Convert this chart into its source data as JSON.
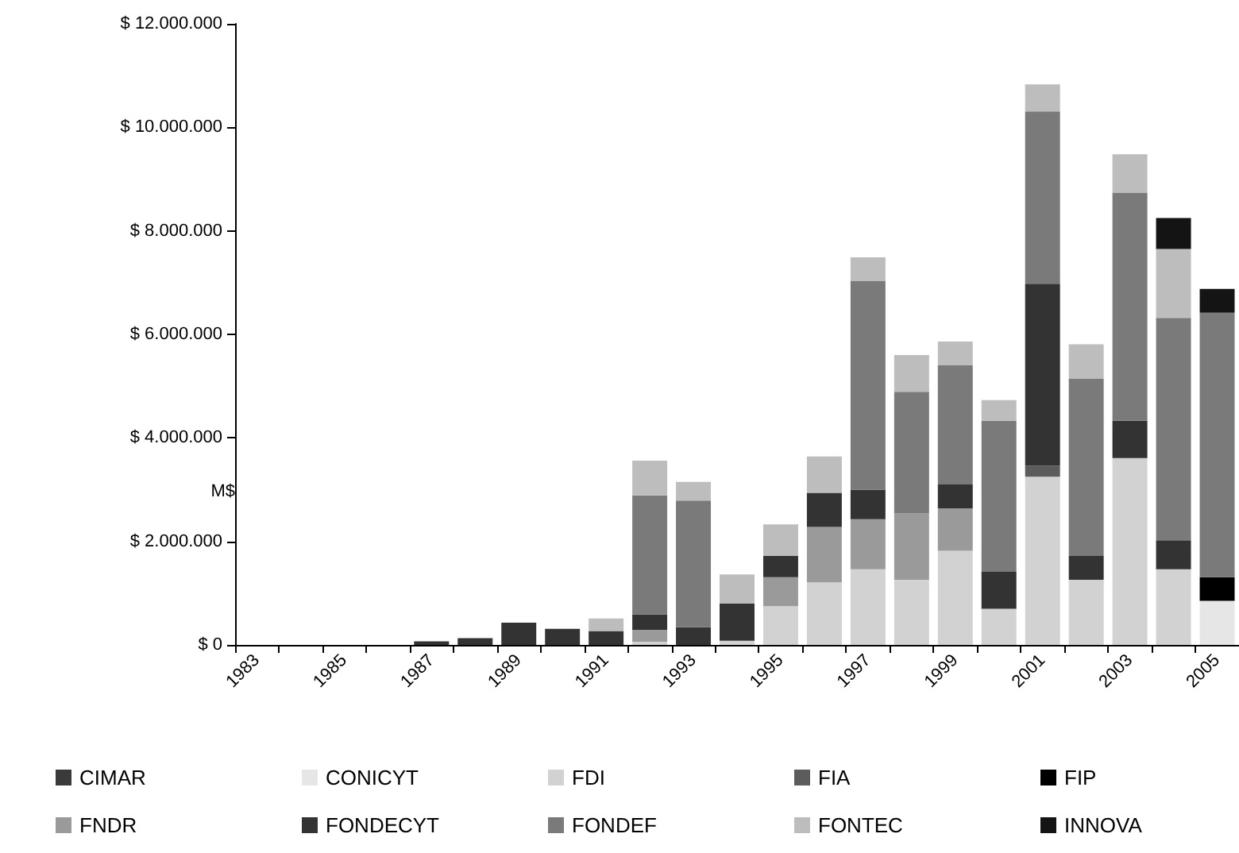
{
  "chart_data": {
    "type": "bar",
    "stacked": true,
    "ylabel": "M$",
    "legend": "bottom",
    "grid": false,
    "categories": [
      "1983",
      null,
      "1985",
      null,
      "1987",
      null,
      "1989",
      null,
      "1991",
      null,
      "1993",
      null,
      "1995",
      null,
      "1997",
      null,
      "1999",
      null,
      "2001",
      null,
      "2003",
      null,
      "2005"
    ],
    "ylim": [
      0,
      12000000
    ],
    "yticks": [
      {
        "value": 0,
        "label": "$ 0"
      },
      {
        "value": 2000000,
        "label": "$ 2.000.000"
      },
      {
        "value": 4000000,
        "label": "$ 4.000.000"
      },
      {
        "value": 6000000,
        "label": "$ 6.000.000"
      },
      {
        "value": 8000000,
        "label": "$ 8.000.000"
      },
      {
        "value": 10000000,
        "label": "$ 10.000.000"
      },
      {
        "value": 12000000,
        "label": "$ 12.000.000"
      }
    ],
    "series": [
      {
        "name": "CIMAR",
        "color": "#3a3a3a",
        "values": [
          null,
          null,
          null,
          null,
          null,
          null,
          null,
          null,
          null,
          null,
          null,
          null,
          null,
          null,
          null,
          null,
          null,
          null,
          null,
          null,
          null,
          null,
          null
        ]
      },
      {
        "name": "CONICYT",
        "color": "#e6e6e6",
        "values": [
          null,
          null,
          null,
          null,
          null,
          null,
          null,
          null,
          null,
          null,
          null,
          null,
          null,
          null,
          null,
          null,
          null,
          null,
          null,
          null,
          null,
          null,
          850000
        ]
      },
      {
        "name": "FDI",
        "color": "#d2d2d2",
        "values": [
          null,
          null,
          null,
          null,
          null,
          null,
          null,
          null,
          null,
          60000,
          null,
          80000,
          750000,
          1210000,
          1460000,
          1260000,
          1820000,
          700000,
          3250000,
          1260000,
          3610000,
          1460000,
          null
        ]
      },
      {
        "name": "FIA",
        "color": "#5c5c5c",
        "values": [
          null,
          null,
          null,
          null,
          null,
          null,
          null,
          null,
          null,
          null,
          null,
          null,
          null,
          null,
          null,
          null,
          null,
          null,
          210000,
          null,
          null,
          null,
          null
        ]
      },
      {
        "name": "FIP",
        "color": "#000000",
        "values": [
          null,
          null,
          null,
          null,
          null,
          null,
          null,
          null,
          null,
          null,
          null,
          null,
          null,
          null,
          null,
          null,
          null,
          null,
          null,
          null,
          null,
          null,
          460000
        ]
      },
      {
        "name": "FNDR",
        "color": "#9a9a9a",
        "values": [
          null,
          null,
          null,
          null,
          null,
          null,
          null,
          null,
          null,
          230000,
          null,
          null,
          560000,
          1070000,
          970000,
          1280000,
          820000,
          null,
          null,
          null,
          null,
          null,
          null
        ]
      },
      {
        "name": "FONDECYT",
        "color": "#333333",
        "values": [
          null,
          null,
          null,
          null,
          70000,
          130000,
          430000,
          310000,
          270000,
          300000,
          340000,
          720000,
          410000,
          660000,
          570000,
          null,
          460000,
          710000,
          3520000,
          460000,
          720000,
          560000,
          null
        ]
      },
      {
        "name": "FONDEF",
        "color": "#7a7a7a",
        "values": [
          null,
          null,
          null,
          null,
          null,
          null,
          null,
          null,
          null,
          2300000,
          2450000,
          null,
          null,
          null,
          4030000,
          2350000,
          2300000,
          2920000,
          3330000,
          3420000,
          4410000,
          4300000,
          5110000
        ]
      },
      {
        "name": "FONTEC",
        "color": "#bdbdbd",
        "values": [
          null,
          null,
          null,
          null,
          null,
          null,
          null,
          null,
          240000,
          670000,
          360000,
          560000,
          610000,
          700000,
          460000,
          710000,
          460000,
          400000,
          520000,
          670000,
          740000,
          1330000,
          null
        ]
      },
      {
        "name": "INNOVA",
        "color": "#141414",
        "values": [
          null,
          null,
          null,
          null,
          null,
          null,
          null,
          null,
          null,
          null,
          null,
          null,
          null,
          null,
          null,
          null,
          null,
          null,
          null,
          null,
          null,
          600000,
          460000
        ]
      }
    ]
  }
}
